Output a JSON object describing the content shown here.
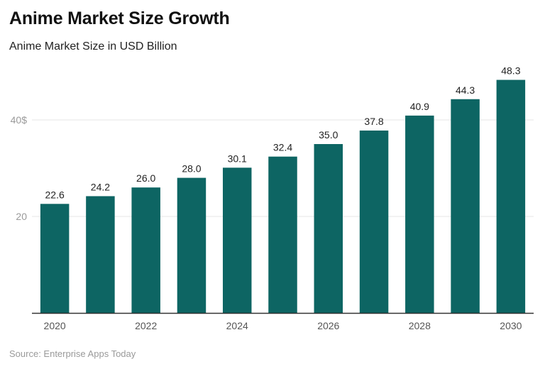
{
  "header": {
    "title": "Anime Market Size Growth",
    "subtitle": "Anime Market Size in USD Billion"
  },
  "footer": {
    "source": "Source: Enterprise Apps Today"
  },
  "colors": {
    "bar": "#0d6563",
    "axis": "#333333",
    "grid": "#e6e6e6"
  },
  "chart_data": {
    "type": "bar",
    "title": "Anime Market Size Growth",
    "subtitle": "Anime Market Size in USD Billion",
    "xlabel": "",
    "ylabel": "",
    "categories": [
      "2020",
      "2021",
      "2022",
      "2023",
      "2024",
      "2025",
      "2026",
      "2027",
      "2028",
      "2029",
      "2030"
    ],
    "values": [
      22.6,
      24.2,
      26.0,
      28.0,
      30.1,
      32.4,
      35.0,
      37.8,
      40.9,
      44.3,
      48.3
    ],
    "value_labels": [
      "22.6",
      "24.2",
      "26.0",
      "28.0",
      "30.1",
      "32.4",
      "35.0",
      "37.8",
      "40.9",
      "44.3",
      "48.3"
    ],
    "x_tick_labels": [
      "2020",
      "",
      "2022",
      "",
      "2024",
      "",
      "2026",
      "",
      "2028",
      "",
      "2030"
    ],
    "y_ticks": [
      {
        "value": 20,
        "label": "20"
      },
      {
        "value": 40,
        "label": "40$"
      }
    ],
    "ylim": [
      0,
      50
    ],
    "grid": true,
    "legend": "none"
  }
}
